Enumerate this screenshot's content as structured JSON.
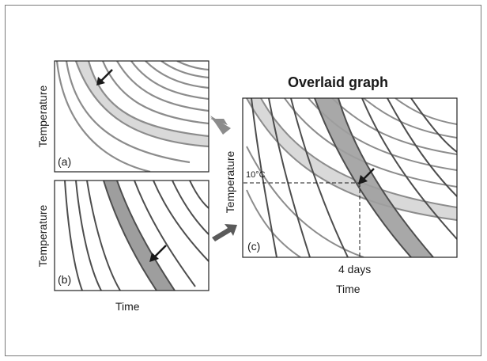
{
  "figure": {
    "overlaid_title": "Overlaid graph",
    "panel_a": {
      "tag": "(a)",
      "ylabel": "Temperature"
    },
    "panel_b": {
      "tag": "(b)",
      "ylabel": "Temperature",
      "xlabel": "Time"
    },
    "panel_c": {
      "tag": "(c)",
      "ylabel": "Temperature",
      "xlabel": "Time",
      "marker_temperature": "10°C",
      "marker_time": "4 days"
    }
  },
  "colors": {
    "curve_a": "#8c8c8c",
    "band_a": "#d9d9d9",
    "curve_b": "#4d4d4d",
    "band_b": "#9e9e9e",
    "arrow": "#1a1a1a",
    "transfer_arrow": "#7f7f7f"
  },
  "icons": {
    "transfer_arrows": "thick-right-arrow",
    "pointer_arrows": "diagonal-arrow"
  }
}
